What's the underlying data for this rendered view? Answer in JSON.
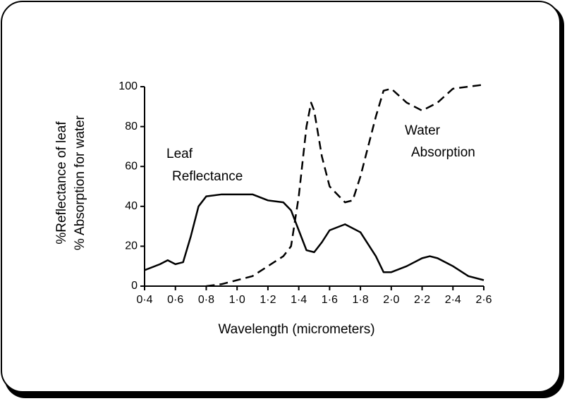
{
  "chart_data": {
    "type": "line",
    "y_label": [
      "%Reflectance of leaf",
      "% Absorption for water"
    ],
    "x_label": "Wavelength (micrometers)",
    "annotations": [
      [
        "Leaf",
        "Reflectance"
      ],
      [
        "Water",
        "Absorption"
      ]
    ],
    "xlim": [
      0.4,
      2.6
    ],
    "ylim": [
      0,
      100
    ],
    "xticks": [
      {
        "value": 0.4,
        "label": "0·4"
      },
      {
        "value": 0.6,
        "label": "0·6"
      },
      {
        "value": 0.8,
        "label": "0·8"
      },
      {
        "value": 1.0,
        "label": "1·0"
      },
      {
        "value": 1.2,
        "label": "1·2"
      },
      {
        "value": 1.4,
        "label": "1·4"
      },
      {
        "value": 1.6,
        "label": "1·6"
      },
      {
        "value": 1.8,
        "label": "1·8"
      },
      {
        "value": 2.0,
        "label": "2·0"
      },
      {
        "value": 2.2,
        "label": "2·2"
      },
      {
        "value": 2.4,
        "label": "2·4"
      },
      {
        "value": 2.6,
        "label": "2·6"
      }
    ],
    "yticks": [
      0,
      20,
      40,
      60,
      80,
      100
    ],
    "grid": false,
    "series": [
      {
        "name": "Leaf Reflectance",
        "color": "#000000",
        "style": "solid",
        "x": [
          0.4,
          0.5,
          0.55,
          0.6,
          0.65,
          0.7,
          0.75,
          0.8,
          0.9,
          1.0,
          1.1,
          1.2,
          1.3,
          1.35,
          1.4,
          1.45,
          1.5,
          1.55,
          1.6,
          1.7,
          1.8,
          1.9,
          1.95,
          2.0,
          2.1,
          2.2,
          2.25,
          2.3,
          2.4,
          2.5,
          2.6
        ],
        "values": [
          8,
          11,
          13,
          11,
          12,
          25,
          40,
          45,
          46,
          46,
          46,
          43,
          42,
          38,
          28,
          18,
          17,
          22,
          28,
          31,
          27,
          15,
          7,
          7,
          10,
          14,
          15,
          14,
          10,
          5,
          3
        ]
      },
      {
        "name": "Water Absorption",
        "color": "#000000",
        "style": "dashed",
        "x": [
          0.8,
          0.9,
          1.0,
          1.1,
          1.2,
          1.3,
          1.35,
          1.4,
          1.45,
          1.48,
          1.5,
          1.55,
          1.6,
          1.7,
          1.75,
          1.8,
          1.9,
          1.95,
          2.0,
          2.1,
          2.2,
          2.3,
          2.4,
          2.5,
          2.6
        ],
        "values": [
          0,
          1,
          3,
          5,
          10,
          15,
          20,
          45,
          80,
          92,
          88,
          65,
          50,
          42,
          43,
          55,
          85,
          98,
          99,
          92,
          88,
          92,
          99,
          100,
          101
        ]
      }
    ]
  }
}
